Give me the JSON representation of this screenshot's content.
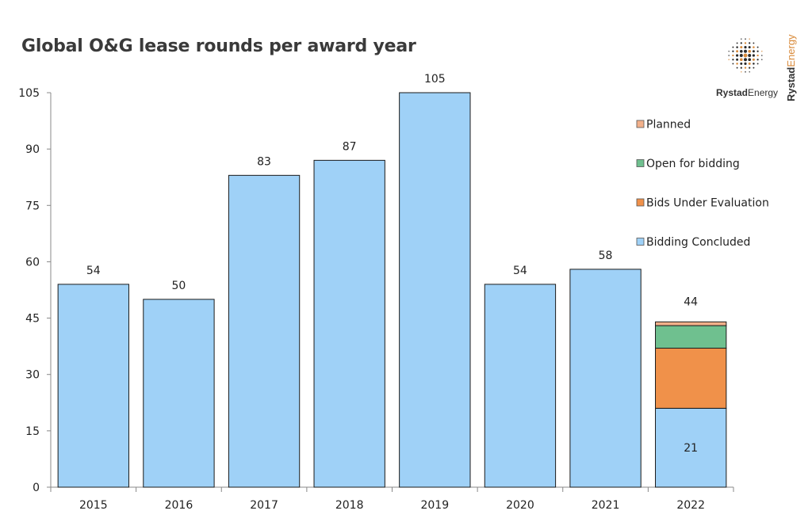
{
  "chart_data": {
    "type": "bar",
    "title": "Global O&G lease rounds per award year",
    "categories": [
      "2015",
      "2016",
      "2017",
      "2018",
      "2019",
      "2020",
      "2021",
      "2022"
    ],
    "ylim": [
      0,
      105
    ],
    "yticks": [
      0,
      15,
      30,
      45,
      60,
      75,
      90,
      105
    ],
    "stacked": true,
    "series": [
      {
        "name": "Bidding Concluded",
        "color": "#9fd1f7",
        "values": [
          54,
          50,
          83,
          87,
          105,
          54,
          58,
          21
        ]
      },
      {
        "name": "Bids Under Evaluation",
        "color": "#f0914a",
        "values": [
          0,
          0,
          0,
          0,
          0,
          0,
          0,
          16
        ]
      },
      {
        "name": "Open for bidding",
        "color": "#6fc08f",
        "values": [
          0,
          0,
          0,
          0,
          0,
          0,
          0,
          6
        ]
      },
      {
        "name": "Planned",
        "color": "#f2b08a",
        "values": [
          0,
          0,
          0,
          0,
          0,
          0,
          0,
          1
        ]
      }
    ],
    "totals": [
      54,
      50,
      83,
      87,
      105,
      54,
      58,
      44
    ],
    "inner_labels": {
      "2022": "21"
    },
    "legend": {
      "position": "right",
      "order": [
        "Planned",
        "Open for bidding",
        "Bids Under Evaluation",
        "Bidding Concluded"
      ]
    },
    "grid": false
  },
  "logo": {
    "text_main": "Rystad",
    "text_accent": "Energy"
  }
}
